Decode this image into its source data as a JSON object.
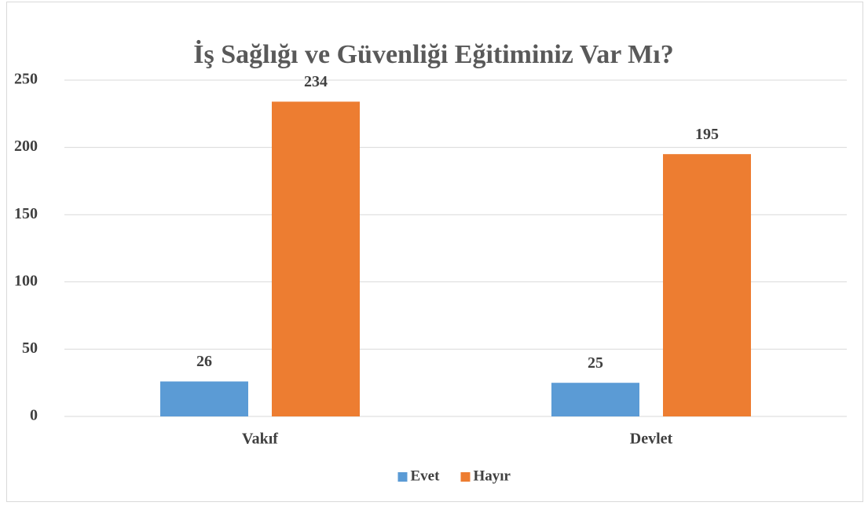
{
  "chart_data": {
    "type": "bar",
    "title": "İş Sağlığı ve Güvenliği Eğitiminiz Var Mı?",
    "categories": [
      "Vakıf",
      "Devlet"
    ],
    "series": [
      {
        "name": "Evet",
        "color": "#5b9bd5",
        "values": [
          26,
          25
        ]
      },
      {
        "name": "Hayır",
        "color": "#ed7d31",
        "values": [
          234,
          195
        ]
      }
    ],
    "ylim": [
      0,
      250
    ],
    "yticks": [
      0,
      50,
      100,
      150,
      200,
      250
    ],
    "grid": true,
    "legend": "bottom"
  }
}
